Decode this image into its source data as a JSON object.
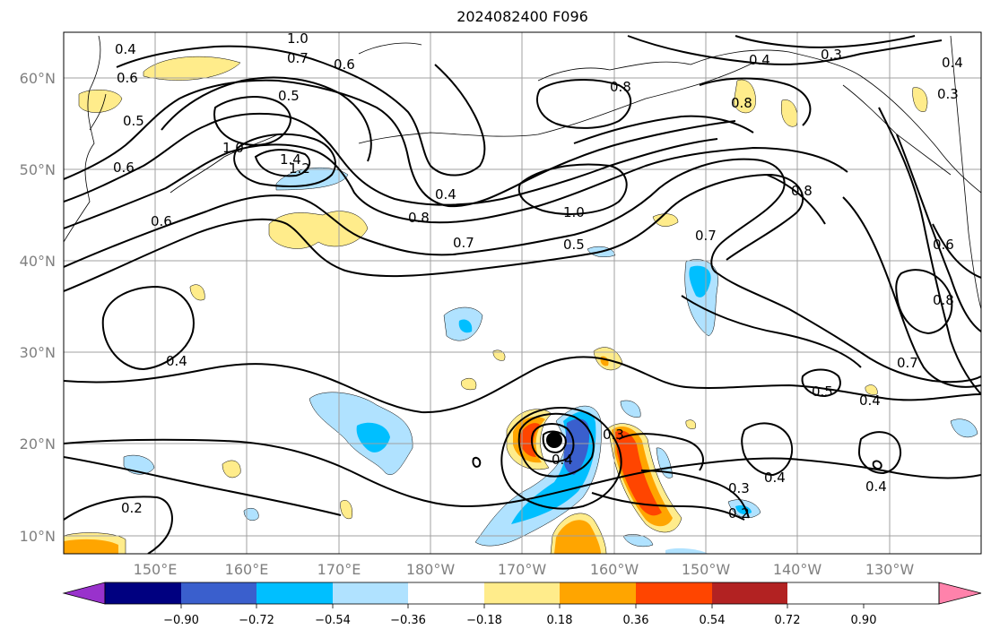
{
  "title": "2024082400 F096",
  "map": {
    "lat_labels": [
      "60°N",
      "50°N",
      "40°N",
      "30°N",
      "20°N",
      "10°N"
    ],
    "lon_labels": [
      "150°E",
      "160°E",
      "170°E",
      "180°W",
      "170°W",
      "160°W",
      "150°W",
      "140°W",
      "130°W"
    ],
    "contour_labels": [
      "1.0",
      "0.7",
      "0.6",
      "0.5",
      "1.0",
      "1.4",
      "1.2",
      "0.6",
      "0.4",
      "0.8",
      "0.7",
      "1.0",
      "0.5",
      "0.8",
      "0.7",
      "0.4",
      "0.3",
      "0.4",
      "0.3",
      "0.8",
      "0.8",
      "0.6",
      "0.8",
      "0.7",
      "0.5",
      "0.4",
      "0.4",
      "0.3",
      "0.4",
      "0.3",
      "0.4",
      "0.4",
      "0.2",
      "0.2",
      "0.5",
      "0.6",
      "0.6",
      "0.4"
    ],
    "storm_marker": "tropical-cyclone-center"
  },
  "colorbar": {
    "tick_labels": [
      "−0.90",
      "−0.72",
      "−0.54",
      "−0.36",
      "−0.18",
      "0.18",
      "0.36",
      "0.54",
      "0.72",
      "0.90"
    ],
    "colors": [
      "#9932cc",
      "#000080",
      "#3a5fcd",
      "#00bfff",
      "#b0e2ff",
      "#ffffff",
      "#ffec8b",
      "#ffa500",
      "#ff4500",
      "#b22222",
      "#ff82ab"
    ]
  }
}
